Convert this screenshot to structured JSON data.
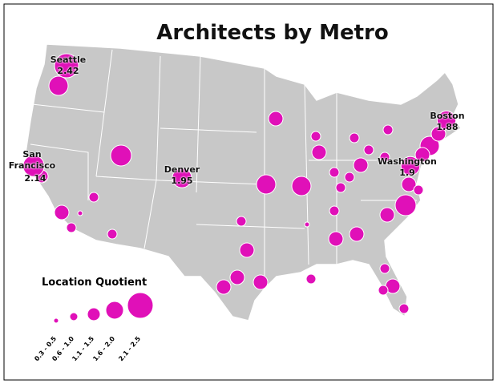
{
  "title": "Architects by Metro",
  "metros": [
    {
      "name": "Seattle",
      "value": 2.42
    },
    {
      "name": "San Francisco",
      "value": 2.14
    },
    {
      "name": "Denver",
      "value": 1.95
    },
    {
      "name": "Washington",
      "value": 1.9
    },
    {
      "name": "Boston",
      "value": 1.88
    }
  ],
  "legend": {
    "title": "Location Quotient",
    "ranges": [
      "0.3 - 0.5",
      "0.6 - 1.0",
      "1.1 - 1.5",
      "1.6 - 2.0",
      "2.1 - 2.5"
    ]
  }
}
